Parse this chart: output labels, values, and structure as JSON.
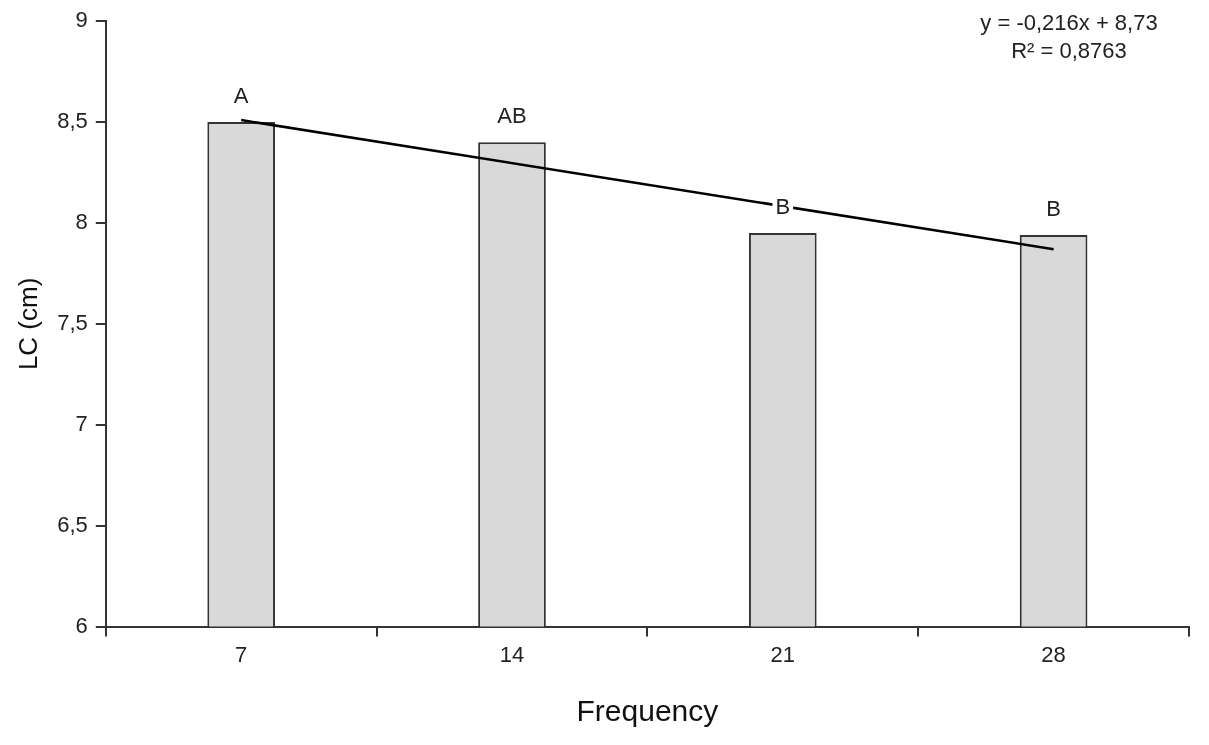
{
  "chart_data": {
    "type": "bar",
    "xlabel": "Frequency",
    "ylabel": "LC (cm)",
    "categories": [
      "7",
      "14",
      "21",
      "28"
    ],
    "marker": "none",
    "series": [
      {
        "color": "#d9d9d9",
        "values": [
          8.5,
          8.4,
          7.95,
          7.94
        ]
      },
      {
        "type": "line",
        "color": "#000000",
        "x": [
          "7",
          "28"
        ],
        "values": [
          8.51,
          7.87
        ]
      }
    ],
    "ylim": [
      6,
      9
    ],
    "yticks": [
      6,
      {
        "value": 6.5,
        "label": "6,5"
      },
      7,
      {
        "value": 7.5,
        "label": "7,5"
      },
      8,
      {
        "value": 8.5,
        "label": "8,5"
      },
      9
    ],
    "annotations": [
      {
        "text": "A",
        "x": "7",
        "y": 8.5
      },
      {
        "text": "AB",
        "x": "14",
        "y": 8.4
      },
      {
        "text": "B",
        "x": "21",
        "y": 7.95
      },
      {
        "text": "B",
        "x": "28",
        "y": 7.94
      },
      "y = -0,216x + 8,73",
      "R² = 0,8763"
    ]
  }
}
